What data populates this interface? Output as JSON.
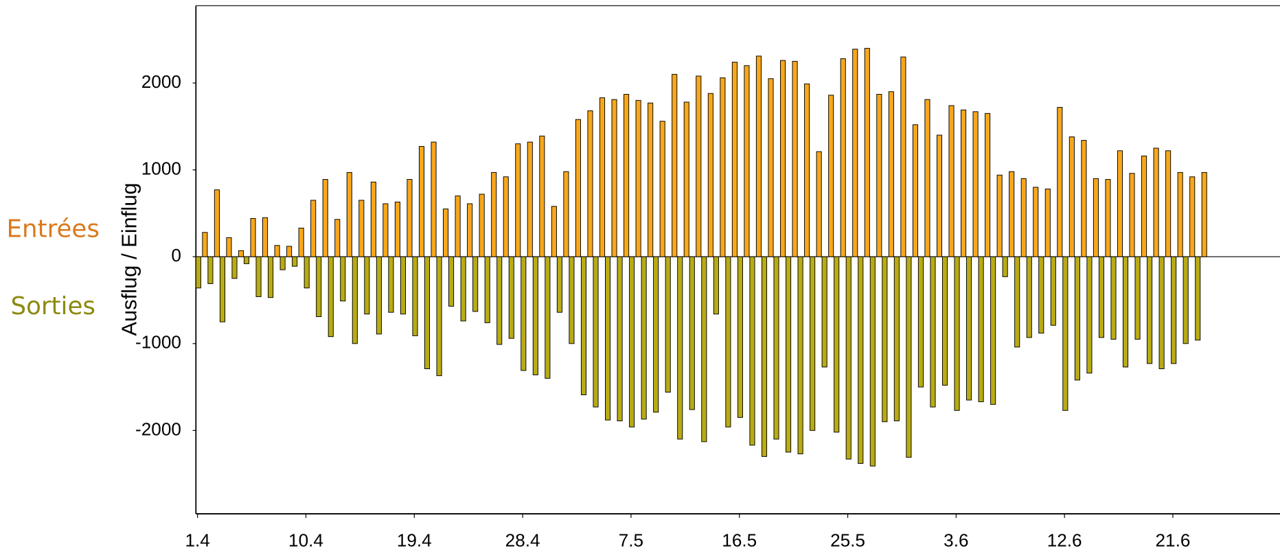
{
  "chart_data": {
    "type": "bar",
    "y_label": "Ausflug / Einflug",
    "categories": [
      "1.4",
      null,
      null,
      null,
      null,
      null,
      null,
      null,
      null,
      "10.4",
      null,
      null,
      null,
      null,
      null,
      null,
      null,
      null,
      "19.4",
      null,
      null,
      null,
      null,
      null,
      null,
      null,
      null,
      "28.4",
      null,
      null,
      null,
      null,
      null,
      null,
      null,
      null,
      "7.5",
      null,
      null,
      null,
      null,
      null,
      null,
      null,
      null,
      "16.5",
      null,
      null,
      null,
      null,
      null,
      null,
      null,
      null,
      "25.5",
      null,
      null,
      null,
      null,
      null,
      null,
      null,
      null,
      "3.6",
      null,
      null,
      null,
      null,
      null,
      null,
      null,
      null,
      "12.6",
      null,
      null,
      null,
      null,
      null,
      null,
      null,
      null,
      "21.6",
      null,
      null
    ],
    "series": [
      {
        "name": "Entrées",
        "color": "#f7a71b",
        "values": [
          280,
          770,
          220,
          70,
          440,
          450,
          130,
          120,
          330,
          650,
          890,
          430,
          970,
          650,
          860,
          610,
          630,
          890,
          1270,
          1320,
          550,
          700,
          610,
          720,
          970,
          920,
          1300,
          1320,
          1390,
          580,
          980,
          1580,
          1680,
          1830,
          1810,
          1870,
          1800,
          1770,
          1560,
          2100,
          1780,
          2080,
          1880,
          2060,
          2240,
          2200,
          2310,
          2050,
          2260,
          2250,
          1990,
          1210,
          1860,
          2280,
          2390,
          2400,
          1870,
          1900,
          2300,
          1520,
          1810,
          1400,
          1740,
          1690,
          1670,
          1650,
          940,
          980,
          900,
          800,
          780,
          1720,
          1380,
          1340,
          900,
          890,
          1220,
          960,
          1160,
          1250,
          1220,
          970,
          920,
          970
        ]
      },
      {
        "name": "Sorties",
        "color": "#b8ab14",
        "values": [
          -360,
          -310,
          -750,
          -250,
          -80,
          -460,
          -470,
          -150,
          -110,
          -360,
          -690,
          -920,
          -510,
          -1000,
          -660,
          -890,
          -640,
          -660,
          -910,
          -1290,
          -1370,
          -570,
          -740,
          -630,
          -760,
          -1010,
          -940,
          -1310,
          -1360,
          -1400,
          -640,
          -1000,
          -1590,
          -1730,
          -1880,
          -1890,
          -1960,
          -1870,
          -1790,
          -1560,
          -2100,
          -1760,
          -2130,
          -660,
          -1960,
          -1850,
          -2170,
          -2300,
          -2100,
          -2250,
          -2270,
          -2000,
          -1270,
          -2020,
          -2330,
          -2380,
          -2410,
          -1900,
          -1890,
          -2310,
          -1500,
          -1730,
          -1480,
          -1770,
          -1650,
          -1670,
          -1700,
          -230,
          -1040,
          -930,
          -880,
          -790,
          -1770,
          -1420,
          -1340,
          -930,
          -950,
          -1270,
          -950,
          -1230,
          -1290,
          -1230,
          -1000,
          -960
        ]
      }
    ],
    "ylim": [
      -2960,
      2890
    ],
    "yticks": [
      -2000,
      -1000,
      0,
      1000,
      2000
    ]
  }
}
